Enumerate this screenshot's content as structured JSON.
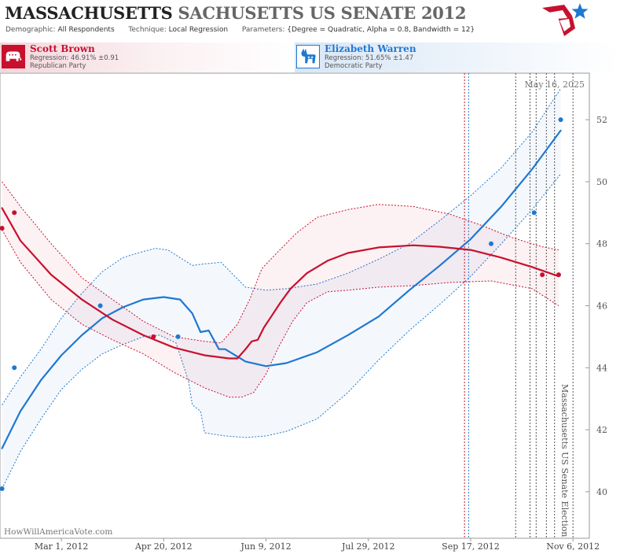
{
  "header": {
    "title_state": "MASSACHUSETTS",
    "title_race": "SACHUSETTS US SENATE 2012",
    "demographic_label": "Demographic:",
    "demographic_value": "All Respondents",
    "technique_label": "Technique:",
    "technique_value": "Local Regression",
    "parameters_label": "Parameters:",
    "parameters_value": "{Degree = Quadratic, Alpha = 0.8, Bandwidth = 12}",
    "logo_icon": "star-flag-logo-icon"
  },
  "candidates": {
    "republican": {
      "name": "Scott Brown",
      "regression": "Regression: 46.91% ±0.91",
      "party": "Republican Party",
      "icon": "elephant-icon",
      "color": "#c8102e"
    },
    "democrat": {
      "name": "Elizabeth Warren",
      "regression": "Regression: 51.65% ±1.47",
      "party": "Democratic Party",
      "icon": "donkey-icon",
      "color": "#1f78d1"
    }
  },
  "chart_data": {
    "type": "line",
    "date_label": "May 16, 2025",
    "watermark": "HowWillAmericaVote.com",
    "election_label": "Massachusetts US Senate Election",
    "x_ticks": [
      "Mar 1, 2012",
      "Apr 20, 2012",
      "Jun 9, 2012",
      "Jul 29, 2012",
      "Sep 17, 2012",
      "Nov 6, 2012"
    ],
    "x_tick_days": [
      60,
      110,
      160,
      210,
      260,
      310
    ],
    "y_ticks": [
      40,
      42,
      44,
      46,
      48,
      50,
      52
    ],
    "ylim": [
      38.5,
      53.5
    ],
    "xlim": [
      30,
      318
    ],
    "election_day": 310,
    "poll_date_lines": [
      {
        "day": 257,
        "color": "#c8102e"
      },
      {
        "day": 259,
        "color": "#1f78d1"
      },
      {
        "day": 282,
        "color": "#555555"
      },
      {
        "day": 289,
        "color": "#555555"
      },
      {
        "day": 292,
        "color": "#555555"
      },
      {
        "day": 297,
        "color": "#555555"
      },
      {
        "day": 301,
        "color": "#555555"
      }
    ],
    "series": [
      {
        "name": "Scott Brown",
        "color": "#c8102e",
        "points": [
          [
            31,
            48.5
          ],
          [
            37,
            49.0
          ],
          [
            105,
            45.0
          ],
          [
            295,
            47.0
          ],
          [
            303,
            47.0
          ]
        ],
        "line": [
          [
            31,
            49.15
          ],
          [
            40,
            48.1
          ],
          [
            55,
            47.0
          ],
          [
            70,
            46.2
          ],
          [
            85,
            45.55
          ],
          [
            100,
            45.05
          ],
          [
            115,
            44.65
          ],
          [
            130,
            44.4
          ],
          [
            142,
            44.3
          ],
          [
            146,
            44.3
          ],
          [
            150,
            44.6
          ],
          [
            153,
            44.85
          ],
          [
            156,
            44.9
          ],
          [
            159,
            45.3
          ],
          [
            162,
            45.6
          ],
          [
            167,
            46.1
          ],
          [
            172,
            46.55
          ],
          [
            180,
            47.05
          ],
          [
            190,
            47.45
          ],
          [
            200,
            47.7
          ],
          [
            215,
            47.88
          ],
          [
            232,
            47.95
          ],
          [
            245,
            47.9
          ],
          [
            260,
            47.8
          ],
          [
            275,
            47.55
          ],
          [
            290,
            47.25
          ],
          [
            303,
            46.95
          ]
        ],
        "upper": [
          [
            31,
            50.0
          ],
          [
            40,
            49.2
          ],
          [
            55,
            48.0
          ],
          [
            70,
            46.9
          ],
          [
            85,
            46.2
          ],
          [
            100,
            45.5
          ],
          [
            115,
            45.0
          ],
          [
            130,
            44.85
          ],
          [
            138,
            44.8
          ],
          [
            146,
            45.4
          ],
          [
            152,
            46.2
          ],
          [
            158,
            47.2
          ],
          [
            166,
            47.75
          ],
          [
            175,
            48.35
          ],
          [
            185,
            48.85
          ],
          [
            200,
            49.1
          ],
          [
            215,
            49.27
          ],
          [
            232,
            49.2
          ],
          [
            250,
            48.95
          ],
          [
            265,
            48.6
          ],
          [
            280,
            48.2
          ],
          [
            295,
            47.9
          ],
          [
            303,
            47.8
          ]
        ],
        "lower": [
          [
            31,
            48.45
          ],
          [
            40,
            47.4
          ],
          [
            55,
            46.2
          ],
          [
            70,
            45.4
          ],
          [
            85,
            44.9
          ],
          [
            100,
            44.45
          ],
          [
            115,
            43.85
          ],
          [
            130,
            43.35
          ],
          [
            142,
            43.05
          ],
          [
            148,
            43.05
          ],
          [
            154,
            43.2
          ],
          [
            160,
            43.8
          ],
          [
            166,
            44.65
          ],
          [
            173,
            45.5
          ],
          [
            180,
            46.1
          ],
          [
            190,
            46.45
          ],
          [
            200,
            46.5
          ],
          [
            215,
            46.6
          ],
          [
            232,
            46.65
          ],
          [
            250,
            46.75
          ],
          [
            270,
            46.8
          ],
          [
            290,
            46.55
          ],
          [
            303,
            46.0
          ]
        ]
      },
      {
        "name": "Elizabeth Warren",
        "color": "#1f78d1",
        "points": [
          [
            31,
            40.1
          ],
          [
            37,
            44.0
          ],
          [
            79,
            46.0
          ],
          [
            117,
            45.0
          ],
          [
            270,
            48.0
          ],
          [
            291,
            49.0
          ],
          [
            304,
            52.0
          ]
        ],
        "line": [
          [
            31,
            41.4
          ],
          [
            40,
            42.6
          ],
          [
            50,
            43.6
          ],
          [
            60,
            44.4
          ],
          [
            70,
            45.05
          ],
          [
            80,
            45.6
          ],
          [
            90,
            45.95
          ],
          [
            100,
            46.2
          ],
          [
            110,
            46.28
          ],
          [
            118,
            46.2
          ],
          [
            124,
            45.75
          ],
          [
            128,
            45.15
          ],
          [
            132,
            45.2
          ],
          [
            137,
            44.6
          ],
          [
            140,
            44.6
          ],
          [
            150,
            44.2
          ],
          [
            160,
            44.05
          ],
          [
            170,
            44.15
          ],
          [
            185,
            44.5
          ],
          [
            200,
            45.05
          ],
          [
            215,
            45.65
          ],
          [
            230,
            46.5
          ],
          [
            245,
            47.3
          ],
          [
            260,
            48.15
          ],
          [
            275,
            49.2
          ],
          [
            290,
            50.4
          ],
          [
            304,
            51.65
          ]
        ],
        "upper": [
          [
            31,
            42.8
          ],
          [
            40,
            43.7
          ],
          [
            50,
            44.6
          ],
          [
            60,
            45.6
          ],
          [
            70,
            46.4
          ],
          [
            80,
            47.1
          ],
          [
            90,
            47.55
          ],
          [
            100,
            47.75
          ],
          [
            106,
            47.85
          ],
          [
            112,
            47.8
          ],
          [
            118,
            47.55
          ],
          [
            124,
            47.3
          ],
          [
            130,
            47.35
          ],
          [
            138,
            47.4
          ],
          [
            144,
            47.0
          ],
          [
            150,
            46.6
          ],
          [
            160,
            46.5
          ],
          [
            170,
            46.55
          ],
          [
            185,
            46.7
          ],
          [
            200,
            47.05
          ],
          [
            215,
            47.5
          ],
          [
            230,
            48.0
          ],
          [
            245,
            48.75
          ],
          [
            260,
            49.55
          ],
          [
            275,
            50.45
          ],
          [
            290,
            51.6
          ],
          [
            304,
            53.0
          ]
        ],
        "lower": [
          [
            31,
            40.1
          ],
          [
            40,
            41.3
          ],
          [
            50,
            42.35
          ],
          [
            60,
            43.3
          ],
          [
            70,
            43.95
          ],
          [
            80,
            44.45
          ],
          [
            90,
            44.75
          ],
          [
            100,
            45.0
          ],
          [
            108,
            45.05
          ],
          [
            116,
            44.8
          ],
          [
            122,
            43.6
          ],
          [
            124,
            42.8
          ],
          [
            128,
            42.6
          ],
          [
            130,
            41.9
          ],
          [
            140,
            41.8
          ],
          [
            150,
            41.75
          ],
          [
            160,
            41.8
          ],
          [
            170,
            41.95
          ],
          [
            185,
            42.35
          ],
          [
            200,
            43.2
          ],
          [
            215,
            44.25
          ],
          [
            230,
            45.2
          ],
          [
            245,
            46.05
          ],
          [
            260,
            46.95
          ],
          [
            275,
            48.0
          ],
          [
            290,
            49.1
          ],
          [
            304,
            50.25
          ]
        ]
      }
    ]
  }
}
